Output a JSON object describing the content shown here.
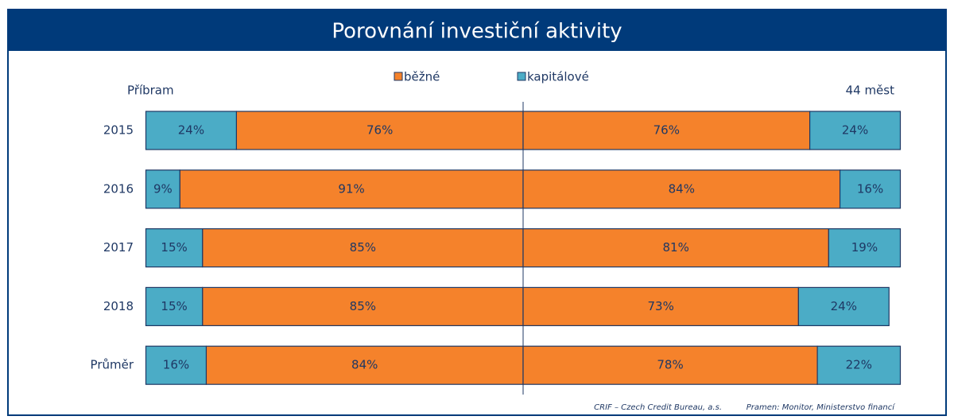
{
  "chart_data": {
    "type": "butterfly",
    "title": "Porovnání investiční aktivity",
    "categories": [
      "2015",
      "2016",
      "2017",
      "2018",
      "Průměr"
    ],
    "legend": [
      {
        "name": "běžné",
        "color": "#f5822b"
      },
      {
        "name": "kapitálové",
        "color": "#4bacc6"
      }
    ],
    "panels": [
      {
        "name": "Příbram",
        "series": [
          {
            "values": [
              76,
              91,
              85,
              85,
              84
            ],
            "value_labels": [
              "76%",
              "91%",
              "85%",
              "85%",
              "84%"
            ]
          },
          {
            "values": [
              24,
              9,
              15,
              15,
              16
            ],
            "value_labels": [
              "24%",
              "9%",
              "15%",
              "15%",
              "16%"
            ]
          }
        ]
      },
      {
        "name": "44 měst",
        "series": [
          {
            "values": [
              76,
              84,
              81,
              73,
              78
            ],
            "value_labels": [
              "76%",
              "84%",
              "81%",
              "73%",
              "78%"
            ]
          },
          {
            "values": [
              24,
              16,
              19,
              24,
              22
            ],
            "value_labels": [
              "24%",
              "16%",
              "19%",
              "24%",
              "22%"
            ]
          }
        ]
      }
    ],
    "notes": [
      "CRIF – Czech Credit Bureau, a.s.",
      "Pramen: Monitor, Ministerstvo financí"
    ]
  }
}
